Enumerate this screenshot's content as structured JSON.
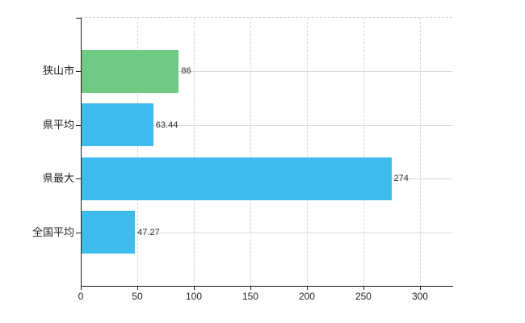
{
  "chart": {
    "background_color": "#ffffff",
    "axis_color": "#1a1a1a",
    "h_gridline_color": "#d9d9d9",
    "v_gridline_color": "#d4d4d4",
    "top_border_color": "#c9c9c9",
    "value_label_color": "#2e2e2e",
    "tick_label_color": "#222222",
    "accent_green": "#6fcb84",
    "accent_blue": "#3dbbed"
  },
  "chart_data": {
    "type": "bar",
    "orientation": "horizontal",
    "title": "",
    "xlabel": "",
    "ylabel": "",
    "categories": [
      "狭山市",
      "県平均",
      "県最大",
      "全国平均"
    ],
    "values": [
      86,
      63.44,
      274,
      47.27
    ],
    "value_labels": [
      "86",
      "63.44",
      "274",
      "47.27"
    ],
    "bar_colors": [
      "#6fcb84",
      "#3dbbed",
      "#3dbbed",
      "#3dbbed"
    ],
    "x_ticks": [
      0,
      50,
      100,
      150,
      200,
      250,
      300
    ],
    "x_tick_labels": [
      "0",
      "50",
      "100",
      "150",
      "200",
      "250",
      "300"
    ],
    "xlim": [
      0,
      328.6
    ],
    "grid": {
      "vertical": "dashed",
      "horizontal": "solid at category centers",
      "top_border": "dashed"
    },
    "legend_position": "none"
  }
}
